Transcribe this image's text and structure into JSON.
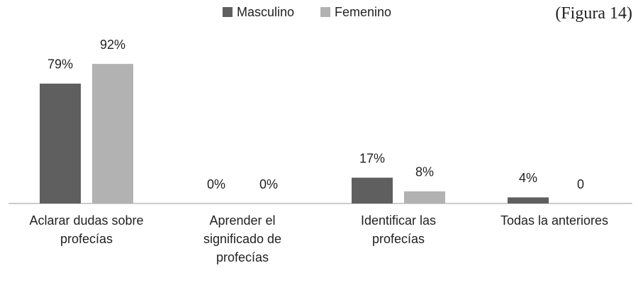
{
  "chart_data": {
    "type": "bar",
    "annotation": "(Figura 14)",
    "categories": [
      "Aclarar dudas sobre\nprofecías",
      "Aprender el\nsignificado de\nprofecías",
      "Identificar las\nprofecías",
      "Todas la anteriores"
    ],
    "series": [
      {
        "name": "Masculino",
        "color": "#5f5f5f",
        "values": [
          79,
          0,
          17,
          4
        ],
        "value_labels": [
          "79%",
          "0%",
          "17%",
          "4%"
        ]
      },
      {
        "name": "Femenino",
        "color": "#b2b2b2",
        "values": [
          92,
          0,
          8,
          0
        ],
        "value_labels": [
          "92%",
          "0%",
          "8%",
          "0"
        ]
      }
    ],
    "legend": "top"
  }
}
